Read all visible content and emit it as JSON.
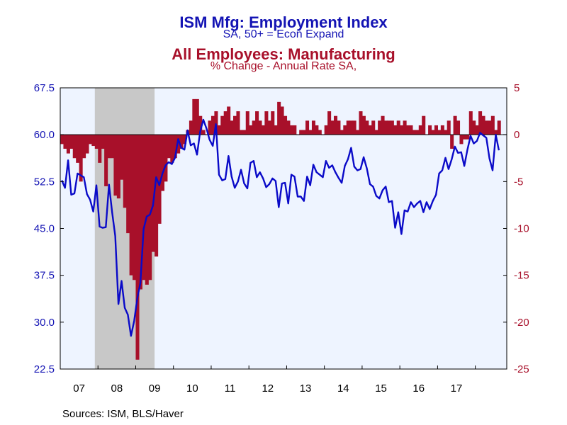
{
  "header": {
    "title1": "ISM Mfg: Employment Index",
    "subtitle1": "SA, 50+ = Econ Expand",
    "title2": "All Employees: Manufacturing",
    "subtitle2": "% Change - Annual Rate    SA,"
  },
  "footer": {
    "source": "Sources:  ISM, BLS/Haver"
  },
  "chart_data": {
    "type": "line",
    "colors": {
      "ism": "#0a0ac8",
      "emp": "#a8102a",
      "plot_bg": "#eef4ff",
      "recession": "#c8c8c8"
    },
    "left_axis": {
      "min": 22.5,
      "max": 67.5,
      "ticks": [
        "67.5",
        "60.0",
        "52.5",
        "45.0",
        "37.5",
        "30.0",
        "22.5"
      ]
    },
    "right_axis": {
      "min": -25,
      "max": 5,
      "ticks": [
        "5",
        "0",
        "-5",
        "-10",
        "-15",
        "-20",
        "-25"
      ]
    },
    "x_labels": [
      "07",
      "08",
      "09",
      "10",
      "11",
      "12",
      "13",
      "14",
      "15",
      "16",
      "17"
    ],
    "x_start": "2007-01",
    "recession_shading": {
      "start": "2007-12",
      "end": "2009-06"
    },
    "series": [
      {
        "name": "ISM Mfg: Employment Index",
        "axis": "left",
        "style": "line",
        "values": [
          52.7,
          51.5,
          55.9,
          50.4,
          50.6,
          53.8,
          53.5,
          53.2,
          50.5,
          49.6,
          47.7,
          51.9,
          45.3,
          45.1,
          45.2,
          52.0,
          47.6,
          43.8,
          32.9,
          36.6,
          32.3,
          31.2,
          27.8,
          30.2,
          33.8,
          36.3,
          44.9,
          46.9,
          47.2,
          48.7,
          53.2,
          51.9,
          53.8,
          55.1,
          55.6,
          55.3,
          56.3,
          59.3,
          57.9,
          57.6,
          60.7,
          58.3,
          58.6,
          56.8,
          60.5,
          62.4,
          61.0,
          59.2,
          58.2,
          61.7,
          53.6,
          52.7,
          52.9,
          56.6,
          53.3,
          51.5,
          52.5,
          54.4,
          52.2,
          51.4,
          55.5,
          55.8,
          53.2,
          54.0,
          53.0,
          51.6,
          52.1,
          53.0,
          52.6,
          48.4,
          52.2,
          52.3,
          49.0,
          53.6,
          53.3,
          50.1,
          50.1,
          49.4,
          53.3,
          51.9,
          55.2,
          54.0,
          53.6,
          53.2,
          55.8,
          54.7,
          55.1,
          54.0,
          53.1,
          52.3,
          55.0,
          56.1,
          57.9,
          54.9,
          54.3,
          54.5,
          56.4,
          54.6,
          52.1,
          51.7,
          50.2,
          49.8,
          51.1,
          51.7,
          49.2,
          49.4,
          45.1,
          47.6,
          44.1,
          47.9,
          47.7,
          49.2,
          48.4,
          49.0,
          49.4,
          47.6,
          49.2,
          48.1,
          49.4,
          50.4,
          53.8,
          54.3,
          56.3,
          54.5,
          56.1,
          58.1,
          57.1,
          57.2,
          55.0,
          57.6,
          59.8,
          58.6,
          59.0,
          60.3,
          59.9,
          59.5,
          56.2,
          54.3,
          60.0,
          57.5
        ]
      },
      {
        "name": "All Employees: Manufacturing",
        "axis": "right",
        "style": "bar",
        "values": [
          -1.0,
          -1.5,
          -2.0,
          -1.5,
          -2.5,
          -3.0,
          -5.0,
          -2.5,
          -2.0,
          -1.0,
          -1.2,
          -1.5,
          -3.0,
          -1.5,
          -5.5,
          -2.5,
          -2.5,
          -6.5,
          -6.8,
          -4.8,
          -7.8,
          -10.5,
          -15.0,
          -15.5,
          -24.0,
          -16.5,
          -15.5,
          -16.0,
          -15.5,
          -12.5,
          -13.0,
          -9.5,
          -6.0,
          -5.0,
          -2.5,
          -3.0,
          -2.5,
          -2.0,
          -1.5,
          -1.0,
          0.5,
          1.5,
          3.8,
          3.8,
          2.0,
          0.5,
          0.0,
          1.5,
          2.0,
          2.5,
          1.0,
          2.0,
          2.5,
          3.0,
          1.5,
          2.0,
          2.5,
          0.5,
          0.5,
          2.5,
          1.0,
          1.5,
          2.5,
          1.5,
          1.0,
          2.5,
          1.5,
          2.5,
          1.0,
          3.5,
          3.0,
          2.0,
          1.5,
          1.0,
          1.0,
          0.0,
          0.5,
          0.5,
          1.5,
          0.5,
          1.5,
          1.0,
          0.5,
          0.0,
          1.0,
          2.5,
          1.5,
          2.0,
          1.5,
          0.5,
          1.0,
          1.5,
          1.5,
          1.5,
          0.5,
          2.5,
          2.0,
          1.5,
          1.0,
          1.5,
          0.5,
          1.5,
          2.0,
          1.5,
          1.5,
          1.5,
          1.0,
          1.5,
          1.0,
          1.5,
          1.0,
          1.0,
          0.5,
          0.5,
          1.0,
          2.0,
          0.0,
          1.0,
          0.5,
          1.0,
          0.5,
          1.0,
          0.5,
          1.5,
          -1.5,
          2.0,
          1.5,
          -1.0,
          -0.5,
          -0.5,
          2.5,
          1.5,
          1.0,
          2.5,
          2.0,
          1.5,
          1.5,
          2.0,
          0.5,
          1.5
        ]
      }
    ]
  }
}
